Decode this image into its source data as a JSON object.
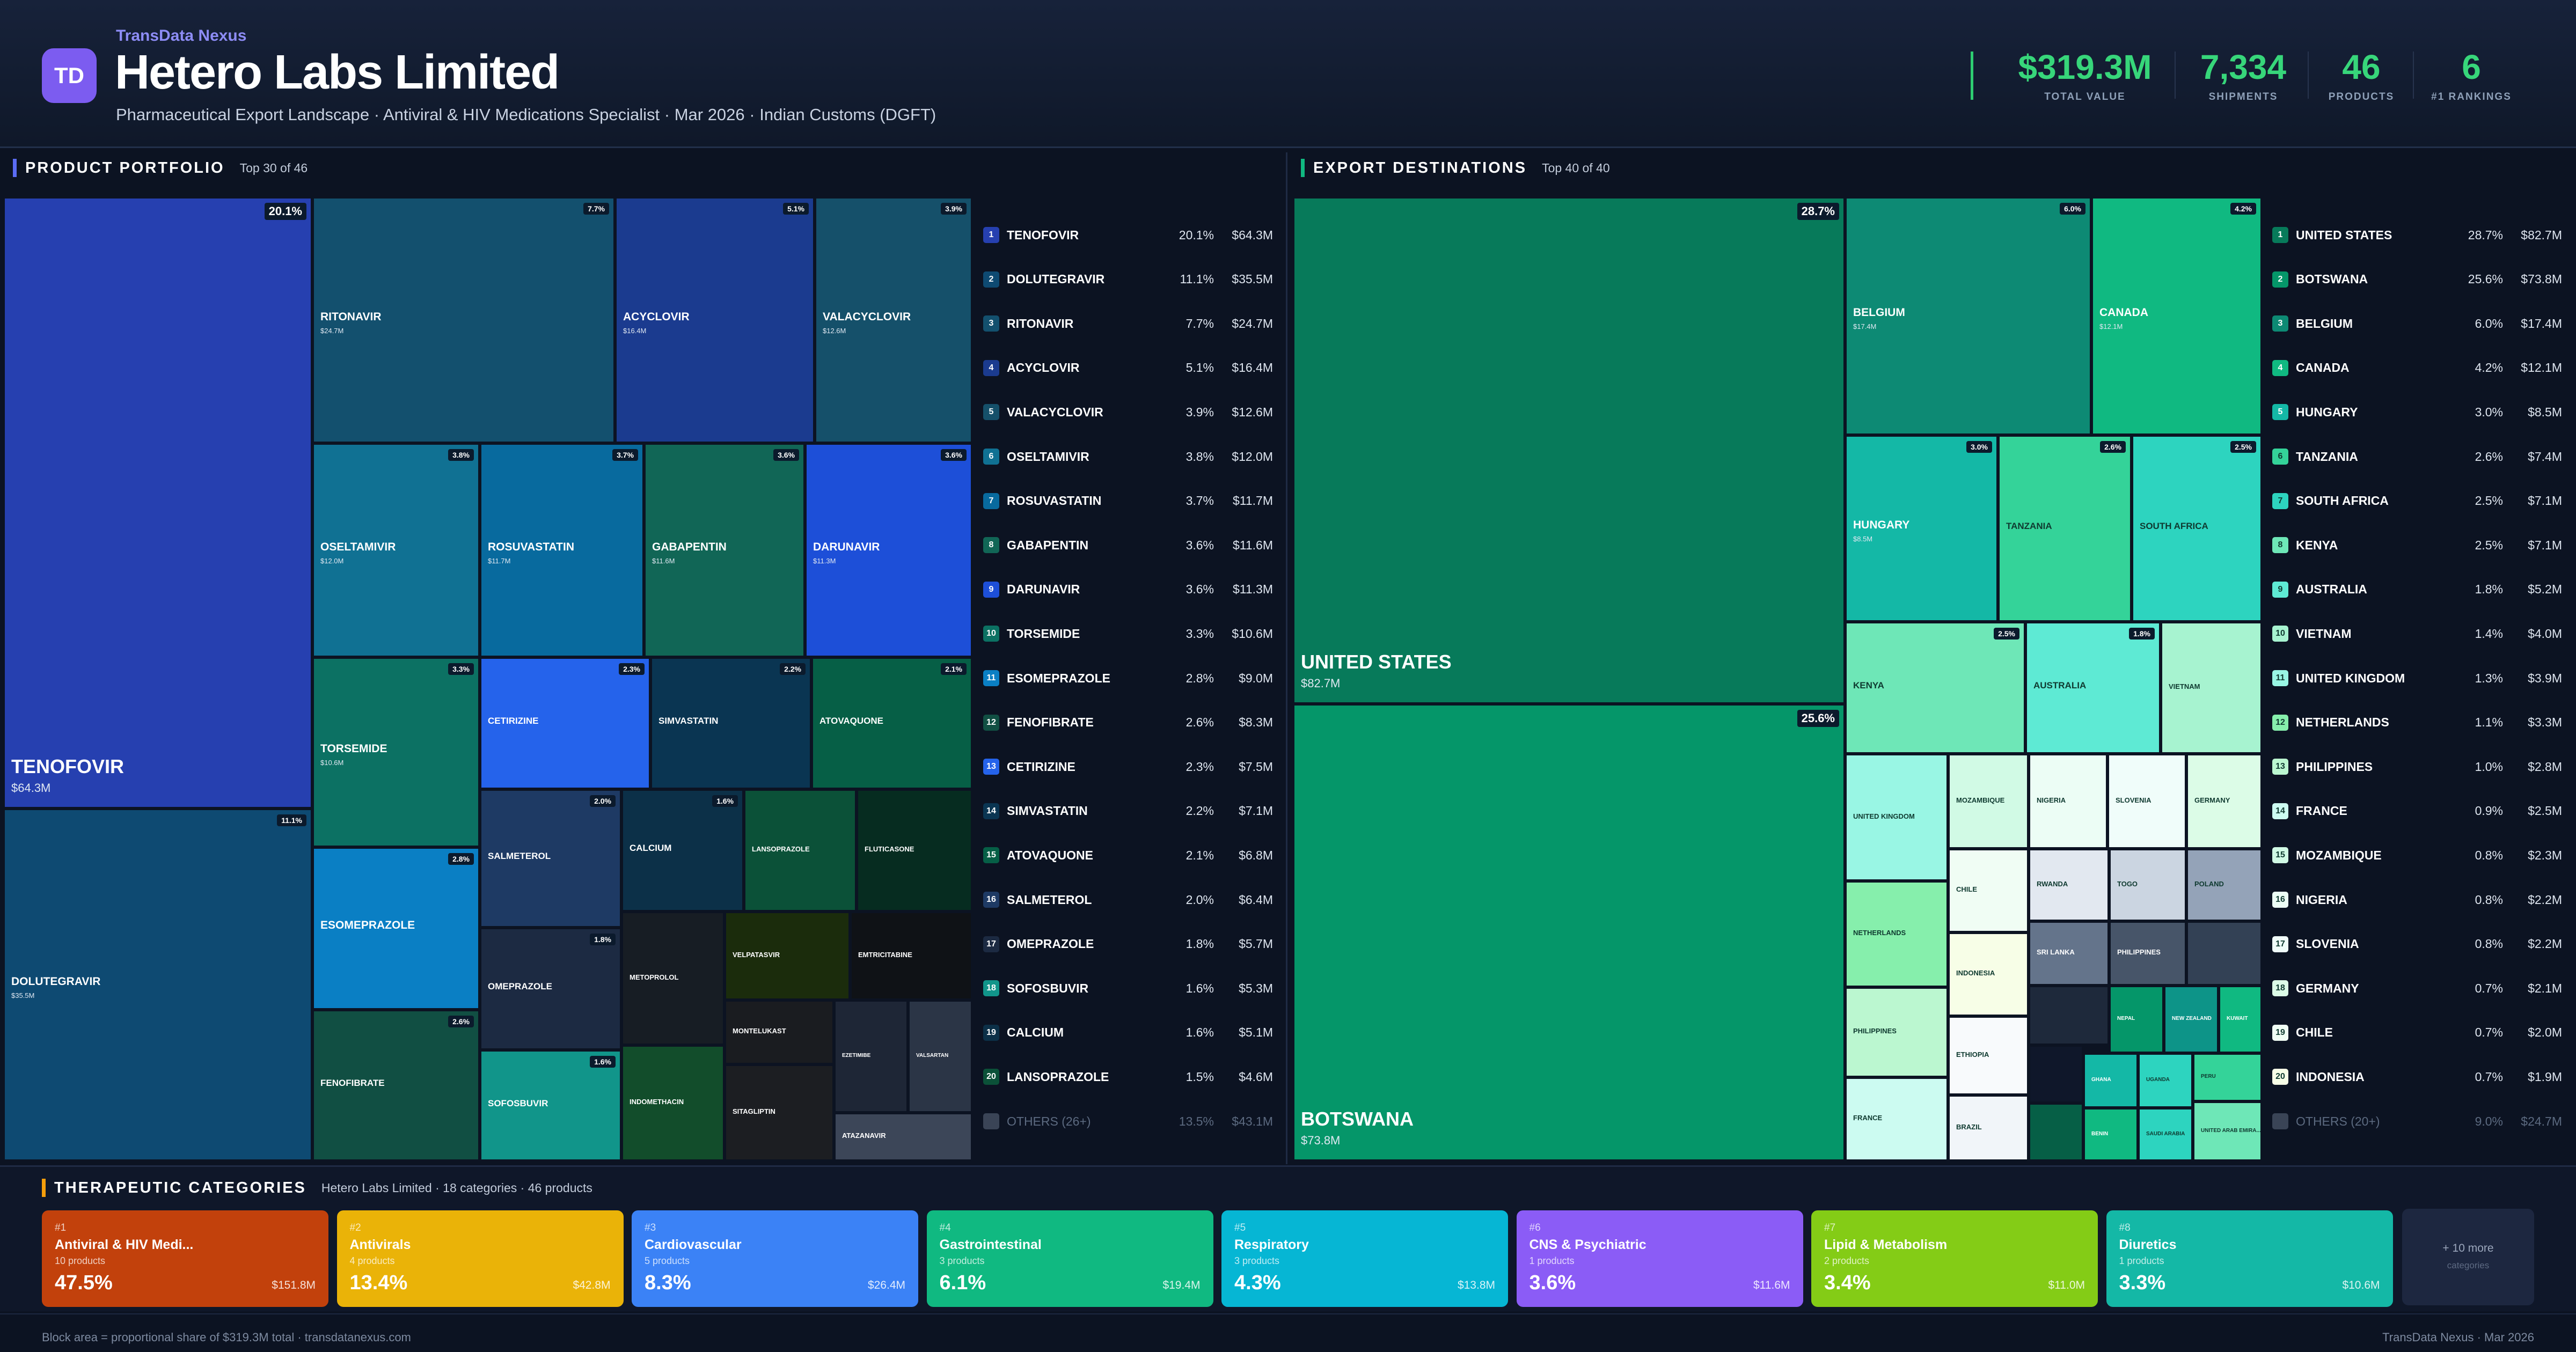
{
  "header": {
    "brand": "TransData Nexus",
    "logo_text": "TD",
    "title": "Hetero Labs Limited",
    "subtitle": "Pharmaceutical Export Landscape · Antiviral & HIV Medications Specialist · Mar 2026 · Indian Customs (DGFT)",
    "stats": [
      {
        "value": "$319.3M",
        "label": "TOTAL VALUE"
      },
      {
        "value": "7,334",
        "label": "SHIPMENTS"
      },
      {
        "value": "46",
        "label": "PRODUCTS"
      },
      {
        "value": "6",
        "label": "#1 RANKINGS"
      }
    ]
  },
  "portfolio": {
    "title": "PRODUCT PORTFOLIO",
    "subtitle": "Top 30 of 46",
    "tiles": [
      {
        "name": "TENOFOVIR",
        "value": "$64.3M",
        "pct": "20.1%",
        "color": "#2640b0"
      },
      {
        "name": "DOLUTEGRAVIR",
        "value": "$35.5M",
        "pct": "11.1%",
        "color": "#0e4a72"
      },
      {
        "name": "RITONAVIR",
        "value": "$24.7M",
        "pct": "7.7%",
        "color": "#13506e"
      },
      {
        "name": "ACYCLOVIR",
        "value": "$16.4M",
        "pct": "5.1%",
        "color": "#1b3b8f"
      },
      {
        "name": "VALACYCLOVIR",
        "value": "$12.6M",
        "pct": "3.9%",
        "color": "#15506a"
      },
      {
        "name": "OSELTAMIVIR",
        "value": "$12.0M",
        "pct": "3.8%",
        "color": "#107193"
      },
      {
        "name": "ROSUVASTATIN",
        "value": "$11.7M",
        "pct": "3.7%",
        "color": "#086a9e"
      },
      {
        "name": "GABAPENTIN",
        "value": "$11.6M",
        "pct": "3.6%",
        "color": "#116656"
      },
      {
        "name": "DARUNAVIR",
        "value": "$11.3M",
        "pct": "3.6%",
        "color": "#1d4fd8"
      },
      {
        "name": "TORSEMIDE",
        "value": "$10.6M",
        "pct": "3.3%",
        "color": "#0c7163"
      },
      {
        "name": "CETIRIZINE",
        "value": "",
        "pct": "2.3%",
        "color": "#2563eb"
      },
      {
        "name": "SIMVASTATIN",
        "value": "",
        "pct": "2.2%",
        "color": "#0a3552"
      },
      {
        "name": "ATOVAQUONE",
        "value": "",
        "pct": "2.1%",
        "color": "#065f46"
      },
      {
        "name": "ESOMEPRAZOLE",
        "value": "",
        "pct": "2.8%",
        "color": "#0a7fc4"
      },
      {
        "name": "SALMETEROL",
        "value": "",
        "pct": "2.0%",
        "color": "#1e3a64"
      },
      {
        "name": "CALCIUM",
        "value": "",
        "pct": "1.6%",
        "color": "#0c3048"
      },
      {
        "name": "LANSOPRAZOLE",
        "value": "",
        "pct": "",
        "color": "#0b5138"
      },
      {
        "name": "FLUTICASONE",
        "value": "",
        "pct": "",
        "color": "#062c20"
      },
      {
        "name": "OMEPRAZOLE",
        "value": "",
        "pct": "1.8%",
        "color": "#1c2a42"
      },
      {
        "name": "METOPROLOL",
        "value": "",
        "pct": "",
        "color": "#171d24"
      },
      {
        "name": "VELPATASVIR",
        "value": "",
        "pct": "",
        "color": "#1b2c0c"
      },
      {
        "name": "EMTRICITABINE",
        "value": "",
        "pct": "",
        "color": "#0f1216"
      },
      {
        "name": "FENOFIBRATE",
        "value": "",
        "pct": "2.6%",
        "color": "#114f43"
      },
      {
        "name": "SOFOSBUVIR",
        "value": "",
        "pct": "1.6%",
        "color": "#11958a"
      },
      {
        "name": "MONTELUKAST",
        "value": "",
        "pct": "",
        "color": "#1a1c20"
      },
      {
        "name": "EZETIMIBE",
        "value": "",
        "pct": "",
        "color": "#1e2636"
      },
      {
        "name": "VALSARTAN",
        "value": "",
        "pct": "",
        "color": "#2b3546"
      },
      {
        "name": "INDOMETHACIN",
        "value": "",
        "pct": "",
        "color": "#124d2b"
      },
      {
        "name": "SITAGLIPTIN",
        "value": "",
        "pct": "",
        "color": "#1c1e22"
      },
      {
        "name": "ATAZANAVIR",
        "value": "",
        "pct": "",
        "color": "#3c4658"
      }
    ],
    "list": [
      {
        "rank": "1",
        "name": "TENOFOVIR",
        "pct": "20.1%",
        "value": "$64.3M",
        "color": "#2640b0"
      },
      {
        "rank": "2",
        "name": "DOLUTEGRAVIR",
        "pct": "11.1%",
        "value": "$35.5M",
        "color": "#0e4a72"
      },
      {
        "rank": "3",
        "name": "RITONAVIR",
        "pct": "7.7%",
        "value": "$24.7M",
        "color": "#13506e"
      },
      {
        "rank": "4",
        "name": "ACYCLOVIR",
        "pct": "5.1%",
        "value": "$16.4M",
        "color": "#1b3b8f"
      },
      {
        "rank": "5",
        "name": "VALACYCLOVIR",
        "pct": "3.9%",
        "value": "$12.6M",
        "color": "#15506a"
      },
      {
        "rank": "6",
        "name": "OSELTAMIVIR",
        "pct": "3.8%",
        "value": "$12.0M",
        "color": "#107193"
      },
      {
        "rank": "7",
        "name": "ROSUVASTATIN",
        "pct": "3.7%",
        "value": "$11.7M",
        "color": "#086a9e"
      },
      {
        "rank": "8",
        "name": "GABAPENTIN",
        "pct": "3.6%",
        "value": "$11.6M",
        "color": "#116656"
      },
      {
        "rank": "9",
        "name": "DARUNAVIR",
        "pct": "3.6%",
        "value": "$11.3M",
        "color": "#1d4fd8"
      },
      {
        "rank": "10",
        "name": "TORSEMIDE",
        "pct": "3.3%",
        "value": "$10.6M",
        "color": "#0c7163"
      },
      {
        "rank": "11",
        "name": "ESOMEPRAZOLE",
        "pct": "2.8%",
        "value": "$9.0M",
        "color": "#0a7fc4"
      },
      {
        "rank": "12",
        "name": "FENOFIBRATE",
        "pct": "2.6%",
        "value": "$8.3M",
        "color": "#114f43"
      },
      {
        "rank": "13",
        "name": "CETIRIZINE",
        "pct": "2.3%",
        "value": "$7.5M",
        "color": "#2563eb"
      },
      {
        "rank": "14",
        "name": "SIMVASTATIN",
        "pct": "2.2%",
        "value": "$7.1M",
        "color": "#0a3552"
      },
      {
        "rank": "15",
        "name": "ATOVAQUONE",
        "pct": "2.1%",
        "value": "$6.8M",
        "color": "#065f46"
      },
      {
        "rank": "16",
        "name": "SALMETEROL",
        "pct": "2.0%",
        "value": "$6.4M",
        "color": "#1e3a64"
      },
      {
        "rank": "17",
        "name": "OMEPRAZOLE",
        "pct": "1.8%",
        "value": "$5.7M",
        "color": "#1c2a42"
      },
      {
        "rank": "18",
        "name": "SOFOSBUVIR",
        "pct": "1.6%",
        "value": "$5.3M",
        "color": "#11958a"
      },
      {
        "rank": "19",
        "name": "CALCIUM",
        "pct": "1.6%",
        "value": "$5.1M",
        "color": "#0c3048"
      },
      {
        "rank": "20",
        "name": "LANSOPRAZOLE",
        "pct": "1.5%",
        "value": "$4.6M",
        "color": "#0b5138"
      },
      {
        "rank": "",
        "name": "OTHERS (26+)",
        "pct": "13.5%",
        "value": "$43.1M",
        "color": "#3a4456"
      }
    ]
  },
  "destinations": {
    "title": "EXPORT DESTINATIONS",
    "subtitle": "Top 40 of 40",
    "tiles": [
      {
        "name": "UNITED STATES",
        "value": "$82.7M",
        "pct": "28.7%",
        "color": "#077a5a"
      },
      {
        "name": "BOTSWANA",
        "value": "$73.8M",
        "pct": "25.6%",
        "color": "#059669"
      },
      {
        "name": "BELGIUM",
        "value": "$17.4M",
        "pct": "6.0%",
        "color": "#0d8a74"
      },
      {
        "name": "CANADA",
        "value": "$12.1M",
        "pct": "4.2%",
        "color": "#10b981"
      },
      {
        "name": "HUNGARY",
        "value": "$8.5M",
        "pct": "3.0%",
        "color": "#14b8a6"
      },
      {
        "name": "TANZANIA",
        "value": "",
        "pct": "2.6%",
        "color": "#34d399"
      },
      {
        "name": "SOUTH AFRICA",
        "value": "",
        "pct": "2.5%",
        "color": "#2dd4bf"
      },
      {
        "name": "KENYA",
        "value": "",
        "pct": "2.5%",
        "color": "#6ee7b7"
      },
      {
        "name": "AUSTRALIA",
        "value": "",
        "pct": "1.8%",
        "color": "#5eead4"
      },
      {
        "name": "VIETNAM",
        "value": "",
        "pct": "",
        "color": "#a7f3d0"
      },
      {
        "name": "UNITED KINGDOM",
        "value": "",
        "pct": "",
        "color": "#99f6e4"
      },
      {
        "name": "NETHERLANDS",
        "value": "",
        "pct": "",
        "color": "#86efac"
      },
      {
        "name": "PHILIPPINES",
        "value": "",
        "pct": "",
        "color": "#bbf7d0"
      },
      {
        "name": "FRANCE",
        "value": "",
        "pct": "",
        "color": "#ccfbf1"
      },
      {
        "name": "MOZAMBIQUE",
        "value": "",
        "pct": "",
        "color": "#d1fae5"
      },
      {
        "name": "NIGERIA",
        "value": "",
        "pct": "",
        "color": "#ecfdf5"
      },
      {
        "name": "SLOVENIA",
        "value": "",
        "pct": "",
        "color": "#f0fdfa"
      },
      {
        "name": "GERMANY",
        "value": "",
        "pct": "",
        "color": "#dcfce7"
      },
      {
        "name": "CHILE",
        "value": "",
        "pct": "",
        "color": "#f0fdf4"
      },
      {
        "name": "RWANDA",
        "value": "",
        "pct": "",
        "color": "#e2e8f0"
      },
      {
        "name": "TOGO",
        "value": "",
        "pct": "",
        "color": "#cbd5e1"
      },
      {
        "name": "POLAND",
        "value": "",
        "pct": "",
        "color": "#94a3b8"
      },
      {
        "name": "INDONESIA",
        "value": "",
        "pct": "",
        "color": "#f7fee7"
      },
      {
        "name": "SRI LANKA",
        "value": "",
        "pct": "",
        "color": "#64748b"
      },
      {
        "name": "PHILIPPINES",
        "value": "",
        "pct": "",
        "color": "#475569"
      },
      {
        "name": "",
        "value": "",
        "pct": "",
        "color": "#334155"
      },
      {
        "name": "ETHIOPIA",
        "value": "",
        "pct": "",
        "color": "#f8fafc"
      },
      {
        "name": "",
        "value": "",
        "pct": "",
        "color": "#1e293b"
      },
      {
        "name": "NEPAL",
        "value": "",
        "pct": "",
        "color": "#059669"
      },
      {
        "name": "NEW ZEALAND",
        "value": "",
        "pct": "",
        "color": "#0d9488"
      },
      {
        "name": "KUWAIT",
        "value": "",
        "pct": "",
        "color": "#10b981"
      },
      {
        "name": "BRAZIL",
        "value": "",
        "pct": "",
        "color": "#f1f5f9"
      },
      {
        "name": "",
        "value": "",
        "pct": "",
        "color": "#0f172a"
      },
      {
        "name": "GHANA",
        "value": "",
        "pct": "",
        "color": "#14b8a6"
      },
      {
        "name": "UGANDA",
        "value": "",
        "pct": "",
        "color": "#2dd4bf"
      },
      {
        "name": "PERU",
        "value": "",
        "pct": "",
        "color": "#34d399"
      },
      {
        "name": "",
        "value": "",
        "pct": "",
        "color": "#065f46"
      },
      {
        "name": "BENIN",
        "value": "",
        "pct": "",
        "color": "#10b981"
      },
      {
        "name": "SAUDI ARABIA",
        "value": "",
        "pct": "",
        "color": "#2dd4bf"
      },
      {
        "name": "UNITED ARAB EMIRA...",
        "value": "",
        "pct": "",
        "color": "#6ee7b7"
      }
    ],
    "list": [
      {
        "rank": "1",
        "name": "UNITED STATES",
        "pct": "28.7%",
        "value": "$82.7M",
        "color": "#077a5a"
      },
      {
        "rank": "2",
        "name": "BOTSWANA",
        "pct": "25.6%",
        "value": "$73.8M",
        "color": "#059669"
      },
      {
        "rank": "3",
        "name": "BELGIUM",
        "pct": "6.0%",
        "value": "$17.4M",
        "color": "#0d8a74"
      },
      {
        "rank": "4",
        "name": "CANADA",
        "pct": "4.2%",
        "value": "$12.1M",
        "color": "#10b981"
      },
      {
        "rank": "5",
        "name": "HUNGARY",
        "pct": "3.0%",
        "value": "$8.5M",
        "color": "#14b8a6"
      },
      {
        "rank": "6",
        "name": "TANZANIA",
        "pct": "2.6%",
        "value": "$7.4M",
        "color": "#34d399"
      },
      {
        "rank": "7",
        "name": "SOUTH AFRICA",
        "pct": "2.5%",
        "value": "$7.1M",
        "color": "#2dd4bf"
      },
      {
        "rank": "8",
        "name": "KENYA",
        "pct": "2.5%",
        "value": "$7.1M",
        "color": "#6ee7b7"
      },
      {
        "rank": "9",
        "name": "AUSTRALIA",
        "pct": "1.8%",
        "value": "$5.2M",
        "color": "#5eead4"
      },
      {
        "rank": "10",
        "name": "VIETNAM",
        "pct": "1.4%",
        "value": "$4.0M",
        "color": "#a7f3d0"
      },
      {
        "rank": "11",
        "name": "UNITED KINGDOM",
        "pct": "1.3%",
        "value": "$3.9M",
        "color": "#99f6e4"
      },
      {
        "rank": "12",
        "name": "NETHERLANDS",
        "pct": "1.1%",
        "value": "$3.3M",
        "color": "#86efac"
      },
      {
        "rank": "13",
        "name": "PHILIPPINES",
        "pct": "1.0%",
        "value": "$2.8M",
        "color": "#bbf7d0"
      },
      {
        "rank": "14",
        "name": "FRANCE",
        "pct": "0.9%",
        "value": "$2.5M",
        "color": "#ccfbf1"
      },
      {
        "rank": "15",
        "name": "MOZAMBIQUE",
        "pct": "0.8%",
        "value": "$2.3M",
        "color": "#d1fae5"
      },
      {
        "rank": "16",
        "name": "NIGERIA",
        "pct": "0.8%",
        "value": "$2.2M",
        "color": "#ecfdf5"
      },
      {
        "rank": "17",
        "name": "SLOVENIA",
        "pct": "0.8%",
        "value": "$2.2M",
        "color": "#f0fdfa"
      },
      {
        "rank": "18",
        "name": "GERMANY",
        "pct": "0.7%",
        "value": "$2.1M",
        "color": "#dcfce7"
      },
      {
        "rank": "19",
        "name": "CHILE",
        "pct": "0.7%",
        "value": "$2.0M",
        "color": "#f0fdf4"
      },
      {
        "rank": "20",
        "name": "INDONESIA",
        "pct": "0.7%",
        "value": "$1.9M",
        "color": "#f7fee7"
      },
      {
        "rank": "",
        "name": "OTHERS (20+)",
        "pct": "9.0%",
        "value": "$24.7M",
        "color": "#3a4456"
      }
    ]
  },
  "categories": {
    "title": "THERAPEUTIC CATEGORIES",
    "subtitle": "Hetero Labs Limited · 18 categories · 46 products",
    "items": [
      {
        "rank": "#1",
        "name": "Antiviral & HIV Medi...",
        "count": "10 products",
        "pct": "47.5%",
        "value": "$151.8M",
        "color": "#c2410c"
      },
      {
        "rank": "#2",
        "name": "Antivirals",
        "count": "4 products",
        "pct": "13.4%",
        "value": "$42.8M",
        "color": "#eab308"
      },
      {
        "rank": "#3",
        "name": "Cardiovascular",
        "count": "5 products",
        "pct": "8.3%",
        "value": "$26.4M",
        "color": "#3b82f6"
      },
      {
        "rank": "#4",
        "name": "Gastrointestinal",
        "count": "3 products",
        "pct": "6.1%",
        "value": "$19.4M",
        "color": "#10b981"
      },
      {
        "rank": "#5",
        "name": "Respiratory",
        "count": "3 products",
        "pct": "4.3%",
        "value": "$13.8M",
        "color": "#06b6d4"
      },
      {
        "rank": "#6",
        "name": "CNS & Psychiatric",
        "count": "1 products",
        "pct": "3.6%",
        "value": "$11.6M",
        "color": "#8b5cf6"
      },
      {
        "rank": "#7",
        "name": "Lipid & Metabolism",
        "count": "2 products",
        "pct": "3.4%",
        "value": "$11.0M",
        "color": "#84cc16"
      },
      {
        "rank": "#8",
        "name": "Diuretics",
        "count": "1 products",
        "pct": "3.3%",
        "value": "$10.6M",
        "color": "#14b8a6"
      }
    ],
    "more_label": "+ 10 more",
    "more_sub": "categories"
  },
  "footer": {
    "left": "Block area = proportional share of $319.3M total · transdatanexus.com",
    "right": "TransData Nexus · Mar 2026"
  }
}
